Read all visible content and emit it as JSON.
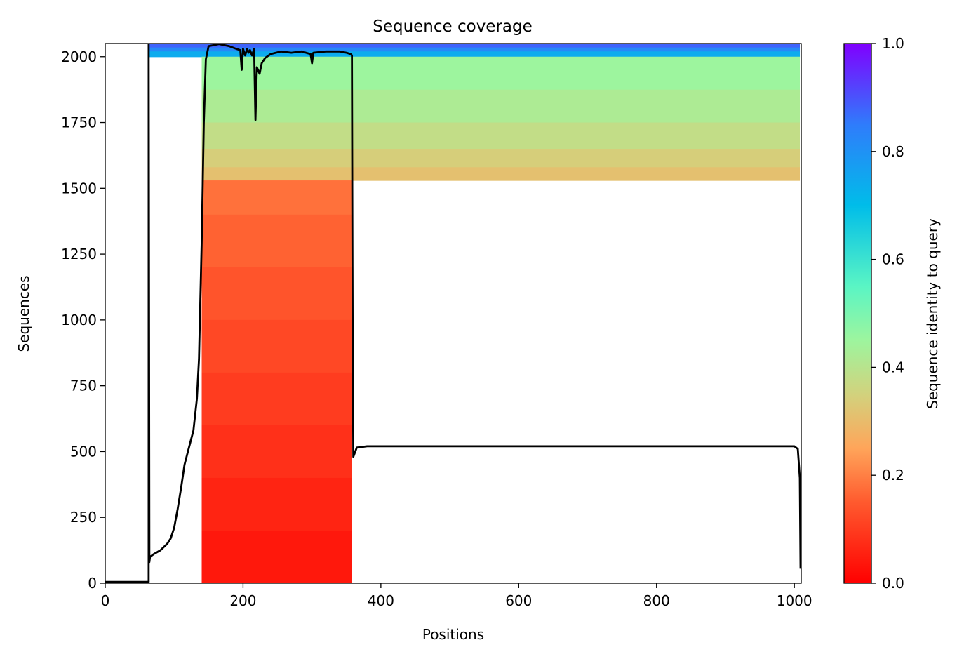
{
  "chart_data": {
    "type": "heatmap",
    "title": "Sequence coverage",
    "xlabel": "Positions",
    "ylabel": "Sequences",
    "xlim": [
      0,
      1010
    ],
    "ylim": [
      0,
      2050
    ],
    "x_ticks": [
      0,
      200,
      400,
      600,
      800,
      1000
    ],
    "y_ticks": [
      0,
      250,
      500,
      750,
      1000,
      1250,
      1500,
      1750,
      2000
    ],
    "colorbar": {
      "label": "Sequence identity to query",
      "range": [
        0,
        1
      ],
      "ticks": [
        "0.0",
        "0.2",
        "0.4",
        "0.6",
        "0.8",
        "1.0"
      ],
      "colormap": "rainbow_r"
    },
    "blocks": [
      {
        "x0": 64,
        "x1": 1008,
        "y0": 2035,
        "y1": 2050,
        "identity": 0.88
      },
      {
        "x0": 64,
        "x1": 1008,
        "y0": 2020,
        "y1": 2035,
        "identity": 0.82
      },
      {
        "x0": 64,
        "x1": 1008,
        "y0": 2000,
        "y1": 2020,
        "identity": 0.74
      },
      {
        "x0": 140,
        "x1": 1008,
        "y0": 1875,
        "y1": 2000,
        "identity": 0.45
      },
      {
        "x0": 140,
        "x1": 1008,
        "y0": 1750,
        "y1": 1875,
        "identity": 0.42
      },
      {
        "x0": 140,
        "x1": 1008,
        "y0": 1650,
        "y1": 1750,
        "identity": 0.38
      },
      {
        "x0": 140,
        "x1": 1008,
        "y0": 1580,
        "y1": 1650,
        "identity": 0.34
      },
      {
        "x0": 140,
        "x1": 1008,
        "y0": 1530,
        "y1": 1580,
        "identity": 0.31
      },
      {
        "x0": 140,
        "x1": 358,
        "y0": 1400,
        "y1": 1530,
        "identity": 0.18
      },
      {
        "x0": 140,
        "x1": 358,
        "y0": 1200,
        "y1": 1400,
        "identity": 0.16
      },
      {
        "x0": 140,
        "x1": 358,
        "y0": 1000,
        "y1": 1200,
        "identity": 0.14
      },
      {
        "x0": 140,
        "x1": 358,
        "y0": 800,
        "y1": 1000,
        "identity": 0.12
      },
      {
        "x0": 140,
        "x1": 358,
        "y0": 600,
        "y1": 800,
        "identity": 0.1
      },
      {
        "x0": 140,
        "x1": 358,
        "y0": 400,
        "y1": 600,
        "identity": 0.08
      },
      {
        "x0": 140,
        "x1": 358,
        "y0": 200,
        "y1": 400,
        "identity": 0.06
      },
      {
        "x0": 140,
        "x1": 358,
        "y0": 0,
        "y1": 200,
        "identity": 0.04
      }
    ],
    "coverage_line": {
      "x": [
        0,
        63,
        63,
        64,
        65,
        70,
        80,
        90,
        95,
        100,
        105,
        110,
        115,
        118,
        122,
        128,
        133,
        136,
        140,
        143,
        146,
        150,
        165,
        180,
        190,
        196,
        198,
        200,
        203,
        206,
        208,
        210,
        213,
        216,
        218,
        220,
        224,
        227,
        232,
        240,
        255,
        270,
        285,
        298,
        300,
        302,
        320,
        340,
        350,
        356,
        358,
        359,
        360,
        365,
        380,
        500,
        700,
        900,
        1000,
        1005,
        1008,
        1009
      ],
      "y": [
        5,
        5,
        2048,
        80,
        100,
        110,
        125,
        150,
        170,
        210,
        280,
        360,
        450,
        480,
        520,
        580,
        700,
        850,
        1300,
        1750,
        1990,
        2040,
        2048,
        2040,
        2030,
        2025,
        1950,
        2030,
        2005,
        2030,
        2015,
        2025,
        2005,
        2030,
        1760,
        1960,
        1935,
        1975,
        1995,
        2010,
        2020,
        2015,
        2020,
        2010,
        1975,
        2015,
        2020,
        2020,
        2015,
        2010,
        2005,
        1000,
        480,
        515,
        520,
        520,
        520,
        520,
        520,
        510,
        400,
        55
      ]
    }
  }
}
